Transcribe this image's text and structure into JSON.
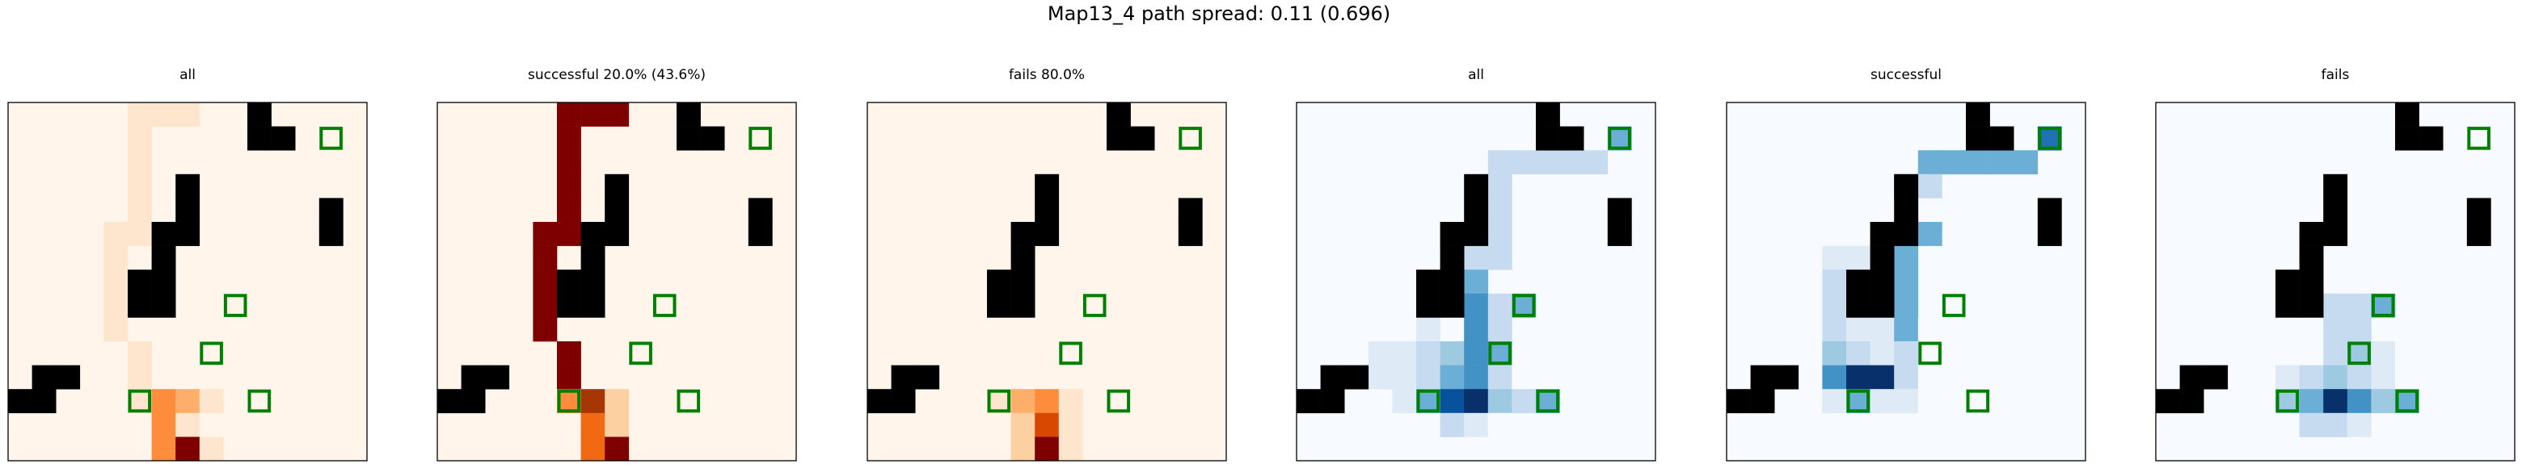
{
  "figure": {
    "suptitle": "Map13_4 path spread: 0.11 (0.696)"
  },
  "colors": {
    "wall": "#000000",
    "goal_outline": "#008000",
    "frame": "#000000",
    "oranges_scale": [
      "#fff5eb",
      "#fee6ce",
      "#fdd0a2",
      "#fdae6b",
      "#fd8d3c",
      "#f16913",
      "#d94801",
      "#a63603",
      "#7f0000"
    ],
    "blues_scale": [
      "#f7fbff",
      "#deebf7",
      "#c6dbef",
      "#9ecae1",
      "#6baed6",
      "#4292c6",
      "#2171b5",
      "#08519c",
      "#08306b"
    ]
  },
  "chart_data": {
    "type": "heatmap",
    "grid_size": 15,
    "walls": [
      [
        10,
        0
      ],
      [
        10,
        1
      ],
      [
        11,
        1
      ],
      [
        7,
        3
      ],
      [
        13,
        4
      ],
      [
        7,
        4
      ],
      [
        6,
        5
      ],
      [
        13,
        5
      ],
      [
        7,
        5
      ],
      [
        6,
        6
      ],
      [
        5,
        7
      ],
      [
        6,
        7
      ],
      [
        5,
        8
      ],
      [
        6,
        8
      ],
      [
        2,
        11
      ],
      [
        1,
        11
      ],
      [
        1,
        12
      ],
      [
        0,
        12
      ]
    ],
    "goals": [
      [
        13,
        1
      ],
      [
        9,
        8
      ],
      [
        8,
        10
      ],
      [
        5,
        12
      ],
      [
        10,
        12
      ]
    ],
    "panels": [
      {
        "title": "all",
        "colormap": "oranges",
        "cells": [
          [
            5,
            0,
            0.18
          ],
          [
            6,
            0,
            0.18
          ],
          [
            7,
            0,
            0.18
          ],
          [
            5,
            1,
            0.1
          ],
          [
            5,
            2,
            0.1
          ],
          [
            5,
            3,
            0.1
          ],
          [
            5,
            4,
            0.1
          ],
          [
            5,
            5,
            0.1
          ],
          [
            4,
            5,
            0.18
          ],
          [
            4,
            6,
            0.18
          ],
          [
            4,
            7,
            0.18
          ],
          [
            4,
            8,
            0.18
          ],
          [
            4,
            9,
            0.18
          ],
          [
            5,
            10,
            0.1
          ],
          [
            5,
            11,
            0.1
          ],
          [
            5,
            12,
            0.1
          ],
          [
            6,
            12,
            0.45
          ],
          [
            7,
            12,
            0.35
          ],
          [
            8,
            12,
            0.1
          ],
          [
            6,
            13,
            0.55
          ],
          [
            7,
            13,
            0.1
          ],
          [
            6,
            14,
            0.45
          ],
          [
            7,
            14,
            1.0
          ],
          [
            8,
            14,
            0.1
          ]
        ]
      },
      {
        "title": "successful 20.0% (43.6%)",
        "colormap": "oranges",
        "cells": [
          [
            5,
            0,
            1.0
          ],
          [
            6,
            0,
            1.0
          ],
          [
            7,
            0,
            1.0
          ],
          [
            5,
            1,
            1.0
          ],
          [
            5,
            2,
            1.0
          ],
          [
            5,
            3,
            1.0
          ],
          [
            5,
            4,
            1.0
          ],
          [
            5,
            5,
            1.0
          ],
          [
            4,
            5,
            1.0
          ],
          [
            4,
            6,
            1.0
          ],
          [
            4,
            7,
            1.0
          ],
          [
            4,
            8,
            1.0
          ],
          [
            4,
            9,
            1.0
          ],
          [
            5,
            10,
            1.0
          ],
          [
            5,
            11,
            1.0
          ],
          [
            5,
            12,
            0.55
          ],
          [
            6,
            12,
            0.9
          ],
          [
            7,
            12,
            0.3
          ],
          [
            6,
            13,
            0.65
          ],
          [
            7,
            13,
            0.3
          ],
          [
            6,
            14,
            0.6
          ],
          [
            7,
            14,
            0.95
          ]
        ]
      },
      {
        "title": "fails 80.0%",
        "colormap": "oranges",
        "cells": [
          [
            5,
            11,
            0.06
          ],
          [
            6,
            11,
            0.06
          ],
          [
            5,
            12,
            0.1
          ],
          [
            6,
            12,
            0.4
          ],
          [
            7,
            12,
            0.5
          ],
          [
            8,
            12,
            0.1
          ],
          [
            6,
            13,
            0.3
          ],
          [
            7,
            13,
            0.8
          ],
          [
            8,
            13,
            0.1
          ],
          [
            6,
            14,
            0.3
          ],
          [
            7,
            14,
            1.0
          ],
          [
            8,
            14,
            0.1
          ]
        ]
      },
      {
        "title": "all",
        "colormap": "blues",
        "cells": [
          [
            13,
            1,
            0.45
          ],
          [
            8,
            1,
            0.04
          ],
          [
            9,
            1,
            0.04
          ],
          [
            8,
            2,
            0.25
          ],
          [
            9,
            2,
            0.25
          ],
          [
            10,
            2,
            0.25
          ],
          [
            11,
            2,
            0.25
          ],
          [
            12,
            2,
            0.25
          ],
          [
            8,
            3,
            0.25
          ],
          [
            8,
            4,
            0.25
          ],
          [
            7,
            5,
            0.25
          ],
          [
            8,
            5,
            0.25
          ],
          [
            6,
            6,
            0.1
          ],
          [
            7,
            6,
            0.25
          ],
          [
            8,
            6,
            0.25
          ],
          [
            4,
            7,
            0.06
          ],
          [
            7,
            7,
            0.45
          ],
          [
            4,
            8,
            0.06
          ],
          [
            7,
            8,
            0.6
          ],
          [
            8,
            8,
            0.25
          ],
          [
            9,
            8,
            0.45
          ],
          [
            4,
            9,
            0.06
          ],
          [
            5,
            9,
            0.1
          ],
          [
            7,
            9,
            0.6
          ],
          [
            8,
            9,
            0.25
          ],
          [
            3,
            10,
            0.1
          ],
          [
            4,
            10,
            0.1
          ],
          [
            5,
            10,
            0.25
          ],
          [
            6,
            10,
            0.4
          ],
          [
            7,
            10,
            0.6
          ],
          [
            8,
            10,
            0.45
          ],
          [
            3,
            11,
            0.1
          ],
          [
            4,
            11,
            0.1
          ],
          [
            5,
            11,
            0.3
          ],
          [
            6,
            11,
            0.5
          ],
          [
            7,
            11,
            0.6
          ],
          [
            8,
            11,
            0.25
          ],
          [
            9,
            11,
            0.06
          ],
          [
            4,
            12,
            0.1
          ],
          [
            5,
            12,
            0.45
          ],
          [
            6,
            12,
            0.85
          ],
          [
            7,
            12,
            1.0
          ],
          [
            8,
            12,
            0.4
          ],
          [
            9,
            12,
            0.25
          ],
          [
            10,
            12,
            0.45
          ],
          [
            6,
            13,
            0.2
          ],
          [
            7,
            13,
            0.15
          ],
          [
            8,
            13,
            0.06
          ]
        ]
      },
      {
        "title": "successful",
        "colormap": "blues",
        "cells": [
          [
            10,
            1,
            0.06
          ],
          [
            12,
            1,
            0.06
          ],
          [
            13,
            1,
            0.8
          ],
          [
            8,
            2,
            0.45
          ],
          [
            9,
            2,
            0.55
          ],
          [
            10,
            2,
            0.55
          ],
          [
            11,
            2,
            0.55
          ],
          [
            12,
            2,
            0.55
          ],
          [
            7,
            3,
            0.45
          ],
          [
            8,
            3,
            0.3
          ],
          [
            7,
            4,
            0.7
          ],
          [
            5,
            4,
            0.06
          ],
          [
            6,
            4,
            0.06
          ],
          [
            7,
            5,
            0.55
          ],
          [
            8,
            5,
            0.45
          ],
          [
            4,
            6,
            0.1
          ],
          [
            5,
            6,
            0.1
          ],
          [
            7,
            6,
            0.55
          ],
          [
            4,
            7,
            0.2
          ],
          [
            7,
            7,
            0.55
          ],
          [
            4,
            8,
            0.2
          ],
          [
            7,
            8,
            0.55
          ],
          [
            4,
            9,
            0.25
          ],
          [
            5,
            9,
            0.15
          ],
          [
            6,
            9,
            0.1
          ],
          [
            7,
            9,
            0.55
          ],
          [
            8,
            9,
            0.06
          ],
          [
            4,
            10,
            0.35
          ],
          [
            5,
            10,
            0.25
          ],
          [
            6,
            10,
            0.15
          ],
          [
            7,
            10,
            0.25
          ],
          [
            4,
            11,
            0.65
          ],
          [
            5,
            11,
            1.0
          ],
          [
            6,
            11,
            1.0
          ],
          [
            7,
            11,
            0.25
          ],
          [
            8,
            11,
            0.06
          ],
          [
            4,
            12,
            0.15
          ],
          [
            5,
            12,
            0.5
          ],
          [
            6,
            12,
            0.15
          ],
          [
            7,
            12,
            0.1
          ],
          [
            8,
            12,
            0.06
          ]
        ]
      },
      {
        "title": "fails",
        "colormap": "blues",
        "cells": [
          [
            7,
            8,
            0.2
          ],
          [
            8,
            8,
            0.2
          ],
          [
            9,
            8,
            0.5
          ],
          [
            7,
            9,
            0.2
          ],
          [
            8,
            9,
            0.2
          ],
          [
            6,
            10,
            0.06
          ],
          [
            7,
            10,
            0.3
          ],
          [
            8,
            10,
            0.35
          ],
          [
            9,
            10,
            0.1
          ],
          [
            10,
            10,
            0.06
          ],
          [
            5,
            11,
            0.1
          ],
          [
            6,
            11,
            0.3
          ],
          [
            7,
            11,
            0.35
          ],
          [
            8,
            11,
            0.3
          ],
          [
            9,
            11,
            0.15
          ],
          [
            10,
            11,
            0.06
          ],
          [
            11,
            11,
            0.06
          ],
          [
            5,
            12,
            0.35
          ],
          [
            6,
            12,
            0.55
          ],
          [
            7,
            12,
            1.0
          ],
          [
            8,
            12,
            0.6
          ],
          [
            9,
            12,
            0.4
          ],
          [
            10,
            12,
            0.5
          ],
          [
            6,
            13,
            0.25
          ],
          [
            7,
            13,
            0.3
          ],
          [
            8,
            13,
            0.1
          ]
        ]
      }
    ]
  }
}
